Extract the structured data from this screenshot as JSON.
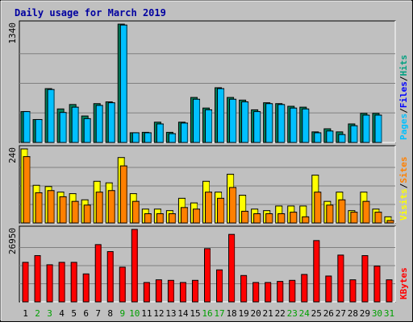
{
  "chart_data": {
    "type": "bar",
    "title": "Daily usage for March 2019",
    "categories": [
      "1",
      "2",
      "3",
      "4",
      "5",
      "6",
      "7",
      "8",
      "9",
      "10",
      "11",
      "12",
      "13",
      "14",
      "15",
      "16",
      "17",
      "18",
      "19",
      "20",
      "21",
      "22",
      "23",
      "24",
      "25",
      "26",
      "27",
      "28",
      "29",
      "30",
      "31"
    ],
    "weekend_days": [
      "2",
      "3",
      "9",
      "10",
      "16",
      "17",
      "23",
      "24",
      "30",
      "31"
    ],
    "panels": [
      {
        "id": "hits_files_pages",
        "ymax": 1340,
        "ymax_label": "1340",
        "ylabel_parts": [
          {
            "text": "Pages",
            "color": "#00c0ff"
          },
          {
            "text": "/",
            "color": "#000000"
          },
          {
            "text": "Files",
            "color": "#0000ff"
          },
          {
            "text": "/",
            "color": "#000000"
          },
          {
            "text": "Hits",
            "color": "#00a080"
          }
        ],
        "series": [
          {
            "name": "Hits",
            "color": "#00805c",
            "values": [
              350,
              260,
              610,
              380,
              430,
              300,
              440,
              460,
              1340,
              110,
              115,
              230,
              115,
              230,
              510,
              390,
              620,
              510,
              480,
              370,
              450,
              440,
              410,
              400,
              120,
              155,
              120,
              210,
              330,
              330,
              0
            ]
          },
          {
            "name": "Files",
            "color": "#00c0ff",
            "values": [
              350,
              260,
              600,
              340,
              400,
              270,
              420,
              450,
              1330,
              110,
              110,
              210,
              100,
              220,
              490,
              370,
              610,
              490,
              460,
              350,
              440,
              430,
              390,
              380,
              110,
              130,
              90,
              190,
              310,
              310,
              0
            ]
          }
        ]
      },
      {
        "id": "sites_kbout_visits",
        "ymax": 240,
        "ymax_label": "240",
        "ylabel_parts": [
          {
            "text": "Visits",
            "color": "#ffff00"
          },
          {
            "text": "/",
            "color": "#000000"
          },
          {
            "text": "Sites",
            "color": "#ff8000"
          }
        ],
        "series": [
          {
            "name": "Visits",
            "color": "#ffff00",
            "values": [
              240,
              122,
              118,
              100,
              95,
              75,
              135,
              130,
              212,
              95,
              45,
              45,
              40,
              80,
              65,
              135,
              100,
              158,
              90,
              45,
              40,
              55,
              55,
              55,
              155,
              70,
              100,
              40,
              100,
              45,
              20
            ]
          },
          {
            "name": "Sites",
            "color": "#ff8000",
            "values": [
              215,
              98,
              105,
              85,
              70,
              58,
              100,
              105,
              185,
              70,
              30,
              30,
              30,
              50,
              45,
              100,
              80,
              115,
              38,
              30,
              30,
              30,
              35,
              20,
              100,
              58,
              75,
              35,
              70,
              35,
              8
            ]
          }
        ]
      },
      {
        "id": "kbf",
        "ymax": 26950,
        "ymax_label": "26950",
        "ylabel_parts": [
          {
            "text": "KBytes",
            "color": "#ff0000"
          }
        ],
        "series": [
          {
            "name": "KBytes",
            "color": "#ff0000",
            "values": [
              14700,
              17200,
              13800,
              14700,
              14700,
              10400,
              21300,
              18700,
              12900,
              26950,
              7200,
              8200,
              8000,
              7200,
              8000,
              19800,
              11900,
              25100,
              9800,
              7200,
              7200,
              7600,
              8000,
              10200,
              22800,
              9600,
              17400,
              8200,
              17200,
              13300,
              8200
            ]
          }
        ]
      }
    ]
  }
}
